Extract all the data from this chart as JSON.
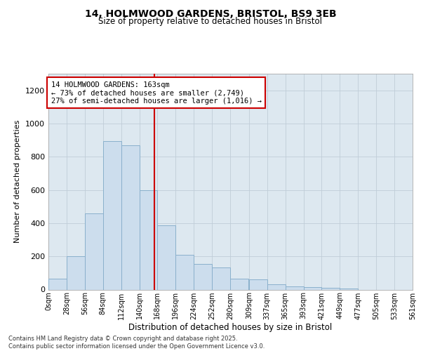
{
  "title_line1": "14, HOLMWOOD GARDENS, BRISTOL, BS9 3EB",
  "title_line2": "Size of property relative to detached houses in Bristol",
  "xlabel": "Distribution of detached houses by size in Bristol",
  "ylabel": "Number of detached properties",
  "footnote": "Contains HM Land Registry data © Crown copyright and database right 2025.\nContains public sector information licensed under the Open Government Licence v3.0.",
  "annotation_line1": "14 HOLMWOOD GARDENS: 163sqm",
  "annotation_line2": "← 73% of detached houses are smaller (2,749)",
  "annotation_line3": "27% of semi-detached houses are larger (1,016) →",
  "property_size": 163,
  "bar_color": "#ccdded",
  "bar_edge_color": "#8ab0cc",
  "vline_color": "#cc0000",
  "annotation_box_color": "#cc0000",
  "bg_color": "#dde8f0",
  "grid_color": "#c0cdd8",
  "categories": [
    "0sqm",
    "28sqm",
    "56sqm",
    "84sqm",
    "112sqm",
    "140sqm",
    "168sqm",
    "196sqm",
    "224sqm",
    "252sqm",
    "280sqm",
    "309sqm",
    "337sqm",
    "365sqm",
    "393sqm",
    "421sqm",
    "449sqm",
    "477sqm",
    "505sqm",
    "533sqm",
    "561sqm"
  ],
  "bin_edges": [
    0,
    28,
    56,
    84,
    112,
    140,
    168,
    196,
    224,
    252,
    280,
    309,
    337,
    365,
    393,
    421,
    449,
    477,
    505,
    533,
    561
  ],
  "values": [
    65,
    200,
    460,
    893,
    870,
    600,
    385,
    210,
    155,
    135,
    65,
    60,
    30,
    18,
    15,
    12,
    8,
    0,
    0,
    0,
    0
  ],
  "ylim": [
    0,
    1300
  ],
  "yticks": [
    0,
    200,
    400,
    600,
    800,
    1000,
    1200
  ]
}
